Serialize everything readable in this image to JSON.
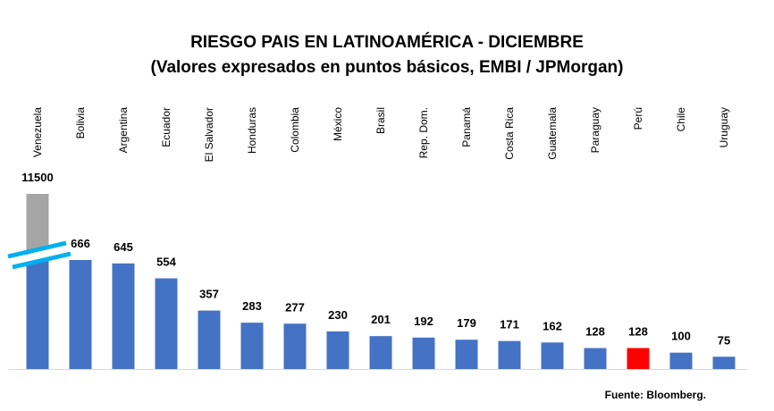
{
  "chart_data": {
    "type": "bar",
    "title": "RIESGO PAIS EN LATINOAMÉRICA - DICIEMBRE",
    "subtitle": "(Valores expresados en puntos básicos, EMBI / JPMorgan)",
    "categories": [
      "Venezuela",
      "Bolivia",
      "Argentina",
      "Ecuador",
      "El Salvador",
      "Honduras",
      "Colombia",
      "México",
      "Brasil",
      "Rep. Dom.",
      "Panamá",
      "Costa Rica",
      "Guatemala",
      "Paraguay",
      "Perú",
      "Chile",
      "Uruguay"
    ],
    "values": [
      11500,
      666,
      645,
      554,
      357,
      283,
      277,
      230,
      201,
      192,
      179,
      171,
      162,
      128,
      128,
      100,
      75
    ],
    "highlight": "Perú",
    "broken_axis_category": "Venezuela",
    "xlabel": "",
    "ylabel": "",
    "source": "Fuente: Bloomberg.",
    "colors": {
      "bar": "#4472C4",
      "highlight": "#FF0000",
      "broken": "#A5A5A5",
      "break_mark": "#00B0F0"
    }
  }
}
